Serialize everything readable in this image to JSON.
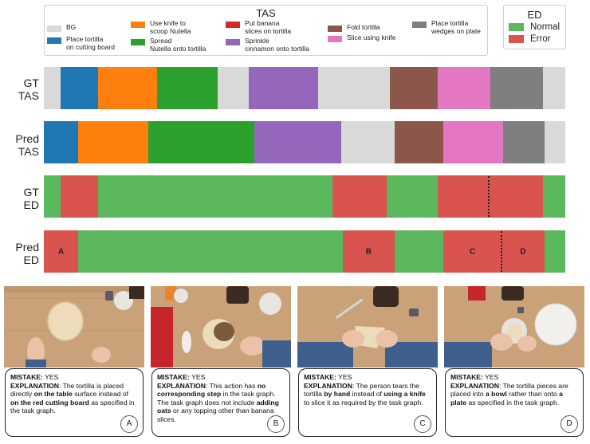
{
  "legend_tas": {
    "title": "TAS",
    "items": [
      {
        "label": "BG",
        "color": "#d9d9d9"
      },
      {
        "label": "Place tortilla\non cutting board",
        "color": "#1f77b4"
      },
      {
        "label": "Use knife to\nscoop Nutella",
        "color": "#ff7f0e"
      },
      {
        "label": "Spread\nNutella onto tortilla",
        "color": "#2ca02c"
      },
      {
        "label": "Put banana\nslices on tortilla",
        "color": "#d62728"
      },
      {
        "label": "Sprinkle\ncinnamon onto tortilla",
        "color": "#9467bd"
      },
      {
        "label": "Fold tortilla",
        "color": "#8c564b"
      },
      {
        "label": "Slice using knife",
        "color": "#e377c2"
      },
      {
        "label": "Place tortilla\nwedges on plate",
        "color": "#7f7f7f"
      }
    ]
  },
  "legend_ed": {
    "title": "ED",
    "items": [
      {
        "label": "Normal",
        "color": "#5cb85c"
      },
      {
        "label": "Error",
        "color": "#d9534f"
      }
    ]
  },
  "rows": [
    {
      "label": "GT\nTAS",
      "segments": [
        {
          "start": 0.0,
          "end": 0.032,
          "color": "#d9d9d9"
        },
        {
          "start": 0.032,
          "end": 0.104,
          "color": "#1f77b4"
        },
        {
          "start": 0.104,
          "end": 0.217,
          "color": "#ff7f0e"
        },
        {
          "start": 0.217,
          "end": 0.333,
          "color": "#2ca02c"
        },
        {
          "start": 0.333,
          "end": 0.393,
          "color": "#d9d9d9"
        },
        {
          "start": 0.393,
          "end": 0.526,
          "color": "#9467bd"
        },
        {
          "start": 0.526,
          "end": 0.664,
          "color": "#d9d9d9"
        },
        {
          "start": 0.664,
          "end": 0.756,
          "color": "#8c564b"
        },
        {
          "start": 0.756,
          "end": 0.856,
          "color": "#e377c2"
        },
        {
          "start": 0.856,
          "end": 0.957,
          "color": "#7f7f7f"
        },
        {
          "start": 0.957,
          "end": 1.0,
          "color": "#d9d9d9"
        }
      ]
    },
    {
      "label": "Pred\nTAS",
      "segments": [
        {
          "start": 0.0,
          "end": 0.066,
          "color": "#1f77b4"
        },
        {
          "start": 0.066,
          "end": 0.2,
          "color": "#ff7f0e"
        },
        {
          "start": 0.2,
          "end": 0.404,
          "color": "#2ca02c"
        },
        {
          "start": 0.404,
          "end": 0.57,
          "color": "#9467bd"
        },
        {
          "start": 0.57,
          "end": 0.673,
          "color": "#d9d9d9"
        },
        {
          "start": 0.673,
          "end": 0.766,
          "color": "#8c564b"
        },
        {
          "start": 0.766,
          "end": 0.88,
          "color": "#e377c2"
        },
        {
          "start": 0.88,
          "end": 0.96,
          "color": "#7f7f7f"
        },
        {
          "start": 0.96,
          "end": 1.0,
          "color": "#d9d9d9"
        }
      ]
    },
    {
      "label": "GT\nED",
      "segments": [
        {
          "start": 0.0,
          "end": 0.032,
          "color": "#5cb85c"
        },
        {
          "start": 0.032,
          "end": 0.104,
          "color": "#d9534f"
        },
        {
          "start": 0.104,
          "end": 0.554,
          "color": "#5cb85c"
        },
        {
          "start": 0.554,
          "end": 0.657,
          "color": "#d9534f"
        },
        {
          "start": 0.657,
          "end": 0.756,
          "color": "#5cb85c"
        },
        {
          "start": 0.756,
          "end": 0.957,
          "color": "#d9534f"
        },
        {
          "start": 0.957,
          "end": 1.0,
          "color": "#5cb85c"
        }
      ],
      "dividers": [
        0.853
      ]
    },
    {
      "label": "Pred\nED",
      "segments": [
        {
          "start": 0.0,
          "end": 0.066,
          "color": "#d9534f",
          "letter": "A"
        },
        {
          "start": 0.066,
          "end": 0.573,
          "color": "#5cb85c"
        },
        {
          "start": 0.573,
          "end": 0.673,
          "color": "#d9534f",
          "letter": "B"
        },
        {
          "start": 0.673,
          "end": 0.766,
          "color": "#5cb85c"
        },
        {
          "start": 0.766,
          "end": 0.878,
          "color": "#d9534f",
          "letter": "C"
        },
        {
          "start": 0.878,
          "end": 0.96,
          "color": "#d9534f",
          "letter": "D"
        },
        {
          "start": 0.96,
          "end": 1.0,
          "color": "#5cb85c"
        }
      ],
      "dividers": [
        0.878
      ]
    }
  ],
  "panels": [
    {
      "id": "A",
      "parts": [
        {
          "t": "MISTAKE:",
          "b": true
        },
        {
          "t": " YES"
        },
        {
          "br": true
        },
        {
          "t": "EXPLANATION",
          "b": true
        },
        {
          "t": ": The tortilla is placed directly "
        },
        {
          "t": "on the table",
          "b": true
        },
        {
          "t": " surface instead of "
        },
        {
          "t": "on the red cutting board",
          "b": true
        },
        {
          "t": " as specified in the task graph."
        }
      ]
    },
    {
      "id": "B",
      "parts": [
        {
          "t": "MISTAKE:",
          "b": true
        },
        {
          "t": " YES"
        },
        {
          "br": true
        },
        {
          "t": "EXPLANATION",
          "b": true
        },
        {
          "t": ": This action has "
        },
        {
          "t": "no corresponding step",
          "b": true
        },
        {
          "t": " in the task graph. The task graph does not include "
        },
        {
          "t": "adding oats",
          "b": true
        },
        {
          "t": " or any topping other than banana slices."
        }
      ]
    },
    {
      "id": "C",
      "parts": [
        {
          "t": "MISTAKE:",
          "b": true
        },
        {
          "t": " YES"
        },
        {
          "br": true
        },
        {
          "t": "EXPLANATION",
          "b": true
        },
        {
          "t": ": The person tears the tortilla "
        },
        {
          "t": "by hand",
          "b": true
        },
        {
          "t": " instead of "
        },
        {
          "t": "using a knife",
          "b": true
        },
        {
          "t": " to slice it as required by the task graph."
        }
      ]
    },
    {
      "id": "D",
      "parts": [
        {
          "t": "MISTAKE:",
          "b": true
        },
        {
          "t": " YES"
        },
        {
          "br": true
        },
        {
          "t": "EXPLANATION",
          "b": true
        },
        {
          "t": ": The tortilla pieces are placed into "
        },
        {
          "t": "a bowl",
          "b": true
        },
        {
          "t": " rather than onto "
        },
        {
          "t": "a plate",
          "b": true
        },
        {
          "t": " as specified in the task graph."
        }
      ]
    }
  ]
}
